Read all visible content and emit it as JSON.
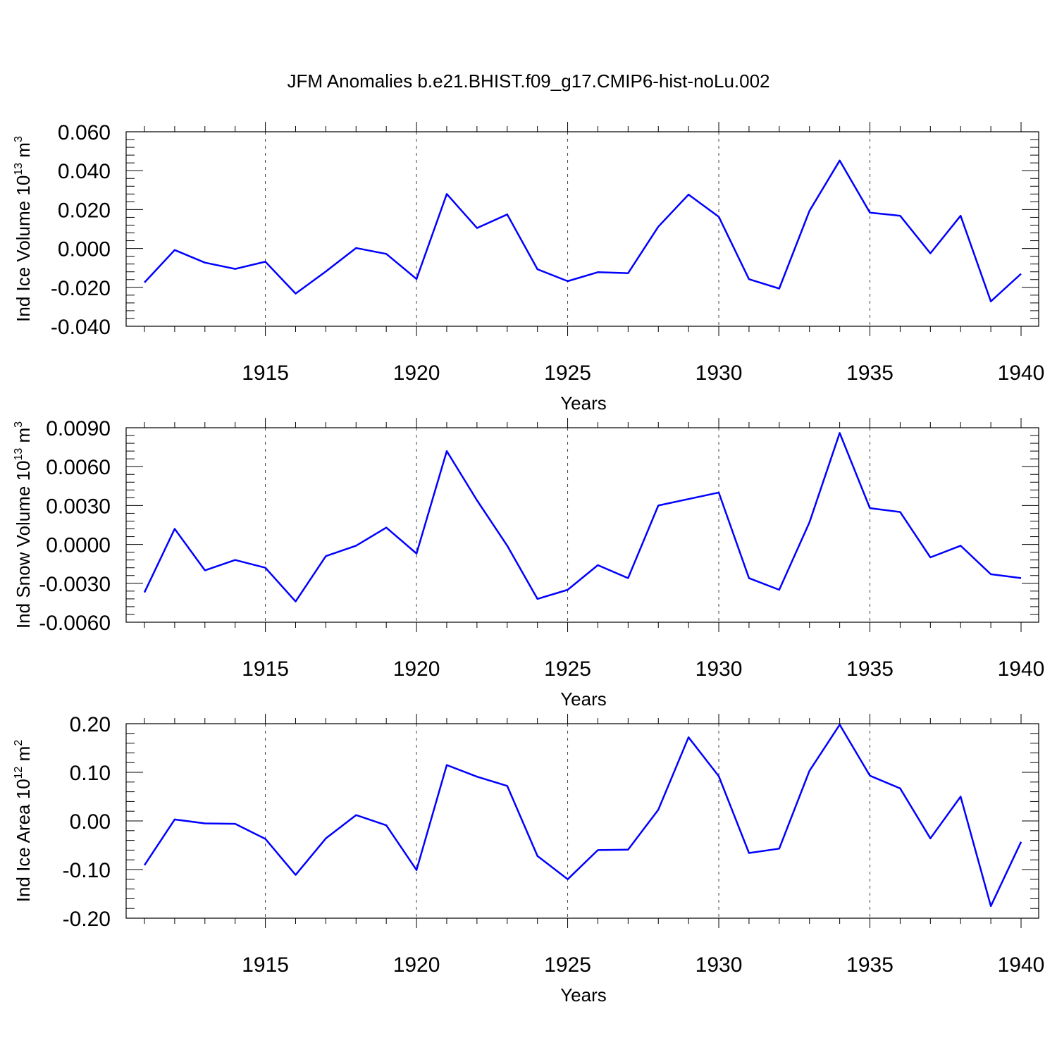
{
  "title": "JFM Anomalies b.e21.BHIST.f09_g17.CMIP6-hist-noLu.002",
  "colors": {
    "line": "#0000ff",
    "frame": "#000000",
    "background": "#ffffff"
  },
  "chart_data": [
    {
      "type": "line",
      "ylabel_main": "Ind Ice Volume 10",
      "ylabel_exp": "13",
      "ylabel_unit": " m",
      "ylabel_unit_exp": "3",
      "xlabel": "Years",
      "xlim": [
        1911,
        1940
      ],
      "ylim": [
        -0.04,
        0.06
      ],
      "grid": "dashed vertical lines at major x ticks",
      "x_ticks": [
        1915,
        1920,
        1925,
        1930,
        1935,
        1940
      ],
      "x_tick_labels": [
        "1915",
        "1920",
        "1925",
        "1930",
        "1935",
        "1940"
      ],
      "y_ticks": [
        -0.04,
        -0.02,
        0.0,
        0.02,
        0.04,
        0.06
      ],
      "y_tick_labels": [
        "-0.040",
        "-0.020",
        "0.000",
        "0.020",
        "0.040",
        "0.060"
      ],
      "x": [
        1911,
        1912,
        1913,
        1914,
        1915,
        1916,
        1917,
        1918,
        1919,
        1920,
        1921,
        1922,
        1923,
        1924,
        1925,
        1926,
        1927,
        1928,
        1929,
        1930,
        1931,
        1932,
        1933,
        1934,
        1935,
        1936,
        1937,
        1938,
        1939,
        1940
      ],
      "values": [
        -0.0175,
        -0.0008,
        -0.0073,
        -0.0105,
        -0.0068,
        -0.0232,
        -0.0118,
        0.0002,
        -0.0028,
        -0.0157,
        0.028,
        0.0105,
        0.0175,
        -0.0107,
        -0.0168,
        -0.0122,
        -0.0127,
        0.0112,
        0.0277,
        0.0163,
        -0.0158,
        -0.0206,
        0.0193,
        0.0452,
        0.0184,
        0.0168,
        -0.0025,
        0.0168,
        -0.0272,
        -0.013
      ]
    },
    {
      "type": "line",
      "ylabel_main": "Ind Snow Volume 10",
      "ylabel_exp": "13",
      "ylabel_unit": " m",
      "ylabel_unit_exp": "3",
      "xlabel": "Years",
      "xlim": [
        1911,
        1940
      ],
      "ylim": [
        -0.006,
        0.009
      ],
      "grid": "dashed vertical lines at major x ticks",
      "x_ticks": [
        1915,
        1920,
        1925,
        1930,
        1935,
        1940
      ],
      "x_tick_labels": [
        "1915",
        "1920",
        "1925",
        "1930",
        "1935",
        "1940"
      ],
      "y_ticks": [
        -0.006,
        -0.003,
        0.0,
        0.003,
        0.006,
        0.009
      ],
      "y_tick_labels": [
        "-0.0060",
        "-0.0030",
        "0.0000",
        "0.0030",
        "0.0060",
        "0.0090"
      ],
      "x": [
        1911,
        1912,
        1913,
        1914,
        1915,
        1916,
        1917,
        1918,
        1919,
        1920,
        1921,
        1922,
        1923,
        1924,
        1925,
        1926,
        1927,
        1928,
        1929,
        1930,
        1931,
        1932,
        1933,
        1934,
        1935,
        1936,
        1937,
        1938,
        1939,
        1940
      ],
      "values": [
        -0.0037,
        0.0012,
        -0.002,
        -0.0012,
        -0.0018,
        -0.0044,
        -0.0009,
        -0.0001,
        0.0013,
        -0.0007,
        0.0072,
        0.0034,
        -0.0001,
        -0.0042,
        -0.0035,
        -0.0016,
        -0.0026,
        0.003,
        0.0035,
        0.004,
        -0.0026,
        -0.0035,
        0.0017,
        0.0086,
        0.0028,
        0.0025,
        -0.001,
        -0.0001,
        -0.0023,
        -0.0026
      ]
    },
    {
      "type": "line",
      "ylabel_main": "Ind Ice Area 10",
      "ylabel_exp": "12",
      "ylabel_unit": " m",
      "ylabel_unit_exp": "2",
      "xlabel": "Years",
      "xlim": [
        1911,
        1940
      ],
      "ylim": [
        -0.2,
        0.2
      ],
      "grid": "dashed vertical lines at major x ticks",
      "x_ticks": [
        1915,
        1920,
        1925,
        1930,
        1935,
        1940
      ],
      "x_tick_labels": [
        "1915",
        "1920",
        "1925",
        "1930",
        "1935",
        "1940"
      ],
      "y_ticks": [
        -0.2,
        -0.1,
        0.0,
        0.1,
        0.2
      ],
      "y_tick_labels": [
        "-0.20",
        "-0.10",
        "0.00",
        "0.10",
        "0.20"
      ],
      "x": [
        1911,
        1912,
        1913,
        1914,
        1915,
        1916,
        1917,
        1918,
        1919,
        1920,
        1921,
        1922,
        1923,
        1924,
        1925,
        1926,
        1927,
        1928,
        1929,
        1930,
        1931,
        1932,
        1933,
        1934,
        1935,
        1936,
        1937,
        1938,
        1939,
        1940
      ],
      "values": [
        -0.091,
        0.003,
        -0.005,
        -0.006,
        -0.037,
        -0.111,
        -0.036,
        0.012,
        -0.009,
        -0.101,
        0.115,
        0.091,
        0.072,
        -0.072,
        -0.12,
        -0.06,
        -0.059,
        0.023,
        0.172,
        0.092,
        -0.066,
        -0.057,
        0.103,
        0.198,
        0.093,
        0.067,
        -0.036,
        0.05,
        -0.175,
        -0.043
      ]
    }
  ]
}
